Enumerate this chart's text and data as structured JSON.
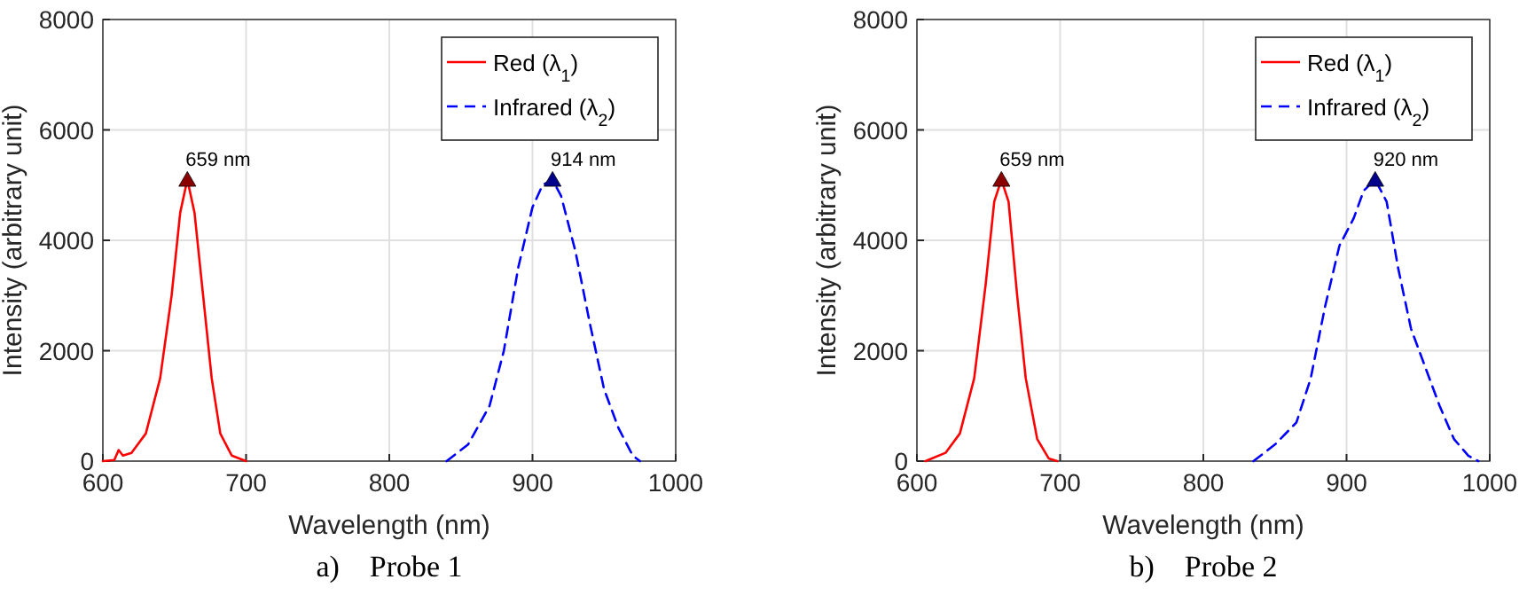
{
  "chart_data": [
    {
      "type": "line",
      "xlabel": "Wavelength (nm)",
      "ylabel": "Intensity (arbitrary unit)",
      "xlim": [
        600,
        1000
      ],
      "ylim": [
        0,
        8000
      ],
      "xticks": [
        600,
        700,
        800,
        900,
        1000
      ],
      "yticks": [
        0,
        2000,
        4000,
        6000,
        8000
      ],
      "grid": true,
      "legend": "top right",
      "annotations": [
        {
          "text": "659 nm",
          "x": 659,
          "y": 5100
        },
        {
          "text": "914 nm",
          "x": 914,
          "y": 5100
        },
        "a)    Probe 1"
      ],
      "series": [
        {
          "name": "Red (λ$_{1}$)",
          "color": "#ff0000",
          "line_style": "solid",
          "x": [
            600,
            608,
            611,
            614,
            620,
            630,
            640,
            648,
            654,
            659,
            664,
            670,
            676,
            682,
            690,
            700
          ],
          "values": [
            0,
            20,
            200,
            100,
            150,
            500,
            1500,
            3000,
            4500,
            5100,
            4500,
            3000,
            1500,
            500,
            100,
            0
          ]
        },
        {
          "name": "Infrared (λ$_{2}$)",
          "color": "#0000ff",
          "line_style": "dashed",
          "x": [
            840,
            855,
            870,
            880,
            890,
            900,
            907,
            914,
            920,
            930,
            940,
            950,
            960,
            970,
            975
          ],
          "values": [
            0,
            300,
            1000,
            2000,
            3500,
            4600,
            5000,
            5100,
            4800,
            3800,
            2500,
            1300,
            600,
            100,
            0
          ]
        },
        {
          "type": "scatter",
          "marker": "triangle",
          "color": "#8b0000",
          "x": [
            659
          ],
          "values": [
            5100
          ]
        },
        {
          "type": "scatter",
          "marker": "triangle",
          "color": "#00008b",
          "x": [
            914
          ],
          "values": [
            5100
          ]
        }
      ]
    },
    {
      "type": "line",
      "xlabel": "Wavelength (nm)",
      "ylabel": "Intensity (arbitrary unit)",
      "xlim": [
        600,
        1000
      ],
      "ylim": [
        0,
        8000
      ],
      "xticks": [
        600,
        700,
        800,
        900,
        1000
      ],
      "yticks": [
        0,
        2000,
        4000,
        6000,
        8000
      ],
      "grid": true,
      "legend": "top right",
      "annotations": [
        {
          "text": "659 nm",
          "x": 659,
          "y": 5100
        },
        {
          "text": "920 nm",
          "x": 920,
          "y": 5100
        },
        "b)    Probe 2"
      ],
      "series": [
        {
          "name": "Red (λ$_{1}$)",
          "color": "#ff0000",
          "line_style": "solid",
          "x": [
            606,
            620,
            630,
            640,
            648,
            654,
            659,
            664,
            670,
            676,
            684,
            692,
            698
          ],
          "values": [
            0,
            150,
            500,
            1500,
            3200,
            4700,
            5100,
            4700,
            3000,
            1500,
            400,
            50,
            0
          ]
        },
        {
          "name": "Infrared (λ$_{2}$)",
          "color": "#0000ff",
          "line_style": "dashed",
          "x": [
            835,
            850,
            865,
            875,
            885,
            895,
            905,
            912,
            920,
            928,
            936,
            945,
            955,
            965,
            975,
            985,
            992
          ],
          "values": [
            0,
            300,
            700,
            1500,
            2800,
            3900,
            4400,
            4900,
            5100,
            4700,
            3500,
            2400,
            1700,
            1000,
            400,
            100,
            0
          ]
        },
        {
          "type": "scatter",
          "marker": "triangle",
          "color": "#8b0000",
          "x": [
            659
          ],
          "values": [
            5100
          ]
        },
        {
          "type": "scatter",
          "marker": "triangle",
          "color": "#00008b",
          "x": [
            920
          ],
          "values": [
            5100
          ]
        }
      ]
    }
  ]
}
